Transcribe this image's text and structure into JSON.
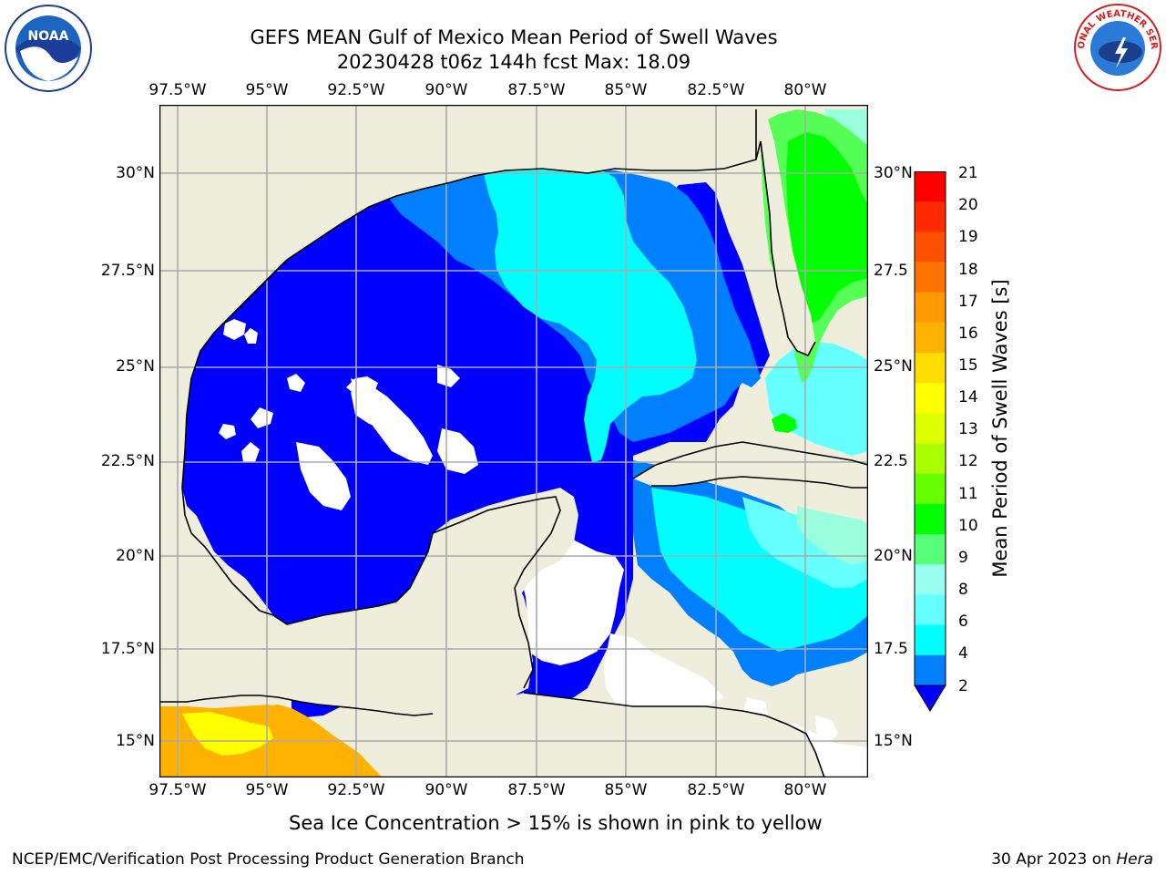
{
  "title": {
    "line1": "GEFS MEAN Gulf of Mexico Mean Period of Swell Waves",
    "line2": "20230428 t06z 144h fcst   Max: 18.09"
  },
  "logos": {
    "left": {
      "icon": "noaa-logo",
      "text": "NOAA"
    },
    "right": {
      "icon": "nws-logo",
      "text": "NATIONAL WEATHER SERVICE"
    }
  },
  "map": {
    "lon_labels": [
      "97.5°W",
      "95°W",
      "92.5°W",
      "90°W",
      "87.5°W",
      "85°W",
      "82.5°W",
      "80°W"
    ],
    "lat_labels": [
      "30°N",
      "27.5°N",
      "25°N",
      "22.5°N",
      "20°N",
      "17.5°N",
      "15°N"
    ],
    "lat_labels_right": [
      "30°N",
      "27.5",
      "25°N",
      "22.5",
      "20°N",
      "17.5",
      "15°N"
    ],
    "colors": {
      "land": "#efeedd",
      "no_data": "#ffffff",
      "lt4": "#0000ff",
      "c4_6": "#0080ff",
      "c6_8": "#00ffff",
      "c8_9": "#66ffff",
      "c9_10": "#99ffdd",
      "c10_12": "#55ff55",
      "c12_13": "#00ff00",
      "c15_16": "#ffff00",
      "c16_17": "#ffb300",
      "grid": "#aaaaaa",
      "coast": "#000000"
    }
  },
  "colorbar": {
    "label": "Mean Period of Swell Waves [s]",
    "ticks": [
      "21",
      "20",
      "19",
      "18",
      "17",
      "16",
      "15",
      "14",
      "13",
      "12",
      "11",
      "10",
      "9",
      "8",
      "6",
      "4",
      "2"
    ],
    "colors": [
      "#ff0000",
      "#ff2a00",
      "#ff5000",
      "#ff7400",
      "#ff9900",
      "#ffb300",
      "#ffdd00",
      "#ffff00",
      "#ddff00",
      "#aaff00",
      "#66ff00",
      "#00ff00",
      "#55ff77",
      "#99ffee",
      "#66ffff",
      "#00ffff",
      "#0080ff"
    ],
    "extend_color": "#0000ff"
  },
  "note": "Sea Ice Concentration > 15% is shown in pink to yellow",
  "footer": {
    "left": "NCEP/EMC/Verification Post Processing Product Generation Branch",
    "date": "30 Apr 2023 on",
    "host": "Hera"
  }
}
